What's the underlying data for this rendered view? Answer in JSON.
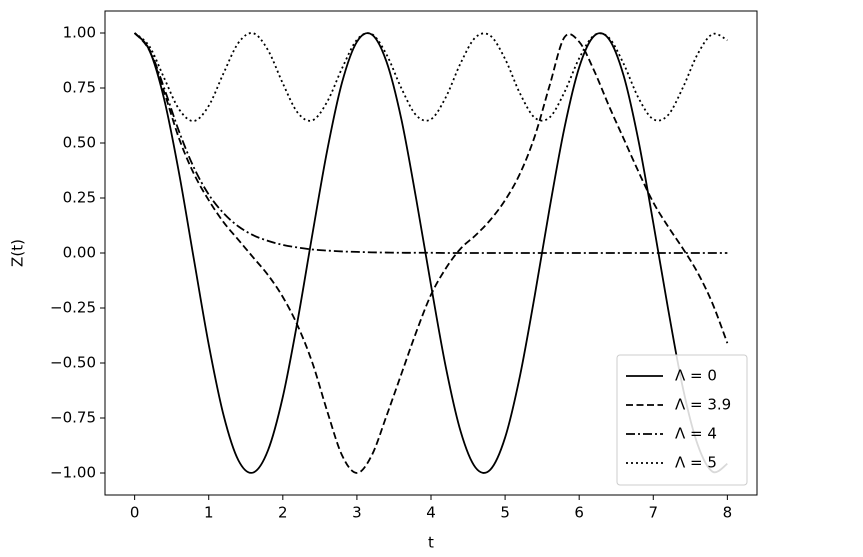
{
  "chart_data": {
    "type": "line",
    "xlabel": "t",
    "ylabel": "Z(t)",
    "x": [
      0,
      0.2,
      0.4,
      0.6,
      0.8,
      1.0,
      1.2,
      1.4,
      1.6,
      1.8,
      2.0,
      2.2,
      2.4,
      2.6,
      2.8,
      3.0,
      3.2,
      3.4,
      3.6,
      3.8,
      4.0,
      4.2,
      4.4,
      4.6,
      4.8,
      5.0,
      5.2,
      5.4,
      5.6,
      5.8,
      6.0,
      6.2,
      6.4,
      6.6,
      6.8,
      7.0,
      7.2,
      7.4,
      7.6,
      7.8,
      8.0
    ],
    "series": [
      {
        "name": "Λ = 0",
        "color": "#000000",
        "linestyle": "solid",
        "values": [
          1,
          0.921,
          0.697,
          0.362,
          -0.029,
          -0.416,
          -0.737,
          -0.942,
          -0.998,
          -0.897,
          -0.654,
          -0.307,
          0.087,
          0.468,
          0.776,
          0.96,
          0.993,
          0.869,
          0.608,
          0.246,
          -0.146,
          -0.519,
          -0.811,
          -0.975,
          -0.985,
          -0.839,
          -0.56,
          -0.194,
          0.202,
          0.567,
          0.844,
          0.986,
          0.973,
          0.806,
          0.511,
          0.137,
          -0.254,
          -0.614,
          -0.872,
          -0.994,
          -0.958
        ]
      },
      {
        "name": "Λ = 3.9",
        "color": "#000000",
        "linestyle": "dashed",
        "values": [
          1,
          0.92,
          0.73,
          0.52,
          0.36,
          0.24,
          0.14,
          0.06,
          -0.02,
          -0.1,
          -0.2,
          -0.33,
          -0.5,
          -0.72,
          -0.92,
          -1.0,
          -0.92,
          -0.74,
          -0.55,
          -0.36,
          -0.19,
          -0.07,
          0.02,
          0.08,
          0.15,
          0.24,
          0.36,
          0.53,
          0.76,
          0.98,
          0.96,
          0.83,
          0.67,
          0.52,
          0.37,
          0.23,
          0.12,
          0.02,
          -0.09,
          -0.23,
          -0.41
        ]
      },
      {
        "name": "Λ = 4",
        "color": "#000000",
        "linestyle": "dashdot",
        "values": [
          1,
          0.925,
          0.748,
          0.552,
          0.388,
          0.266,
          0.181,
          0.121,
          0.081,
          0.055,
          0.037,
          0.025,
          0.016,
          0.011,
          0.007,
          0.005,
          0.003,
          0.002,
          0.001,
          0.001,
          0.001,
          0,
          0,
          0,
          0,
          0,
          0,
          0,
          0,
          0,
          0,
          0,
          0,
          0,
          0,
          0,
          0,
          0,
          0,
          0,
          0
        ]
      },
      {
        "name": "Λ = 5",
        "color": "#000000",
        "linestyle": "dotted",
        "values": [
          1,
          0.939,
          0.794,
          0.653,
          0.6,
          0.669,
          0.817,
          0.955,
          0.999,
          0.922,
          0.771,
          0.638,
          0.603,
          0.688,
          0.84,
          0.969,
          0.995,
          0.902,
          0.749,
          0.626,
          0.608,
          0.708,
          0.863,
          0.98,
          0.988,
          0.882,
          0.726,
          0.615,
          0.616,
          0.73,
          0.885,
          0.989,
          0.979,
          0.86,
          0.705,
          0.608,
          0.627,
          0.752,
          0.905,
          0.995,
          0.967
        ]
      }
    ],
    "xlim": [
      -0.4,
      8.4
    ],
    "xticks": [
      0,
      1,
      2,
      3,
      4,
      5,
      6,
      7,
      8
    ],
    "ylim": [
      -1.1,
      1.1
    ],
    "yticks": [
      {
        "value": -1,
        "label": "−1.00"
      },
      {
        "value": -0.75,
        "label": "−0.75"
      },
      {
        "value": -0.5,
        "label": "−0.50"
      },
      {
        "value": -0.25,
        "label": "−0.25"
      },
      {
        "value": 0,
        "label": "0.00"
      },
      {
        "value": 0.25,
        "label": "0.25"
      },
      {
        "value": 0.5,
        "label": "0.50"
      },
      {
        "value": 0.75,
        "label": "0.75"
      },
      {
        "value": 1,
        "label": "1.00"
      }
    ],
    "legend": "lower right",
    "grid": false
  }
}
